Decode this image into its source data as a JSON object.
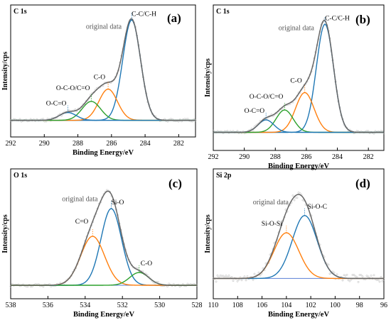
{
  "chart_data": [
    {
      "type": "line",
      "panel": "(a)",
      "title": "C 1s",
      "xlabel": "Binding Energy/eV",
      "ylabel": "Intensity/cps",
      "xlim": [
        292,
        281
      ],
      "x_reversed": true,
      "xticks": [
        292,
        290,
        288,
        286,
        284,
        282
      ],
      "ylim": [
        0,
        1
      ],
      "original_label": "original data",
      "series": [
        {
          "name": "C-C/C-H",
          "type": "gaussian",
          "center": 284.8,
          "height": 0.9,
          "fwhm": 1.25,
          "color": "#1f77b4"
        },
        {
          "name": "C-O",
          "type": "gaussian",
          "center": 286.2,
          "height": 0.28,
          "fwhm": 1.3,
          "color": "#ff7f0e"
        },
        {
          "name": "O-C-O/C=O",
          "type": "gaussian",
          "center": 287.2,
          "height": 0.17,
          "fwhm": 1.3,
          "color": "#2ca02c"
        },
        {
          "name": "O-C=O",
          "type": "gaussian",
          "center": 288.6,
          "height": 0.07,
          "fwhm": 1.2,
          "color": "#1f77b4"
        }
      ],
      "baseline": 0.06
    },
    {
      "type": "line",
      "panel": "(b)",
      "title": "C 1s",
      "xlabel": "Binding Energy/eV",
      "ylabel": "Intensity/cps",
      "xlim": [
        292,
        281
      ],
      "x_reversed": true,
      "xticks": [
        292,
        290,
        288,
        286,
        284,
        282
      ],
      "ylim": [
        0,
        1
      ],
      "original_label": "original data",
      "series": [
        {
          "name": "C-C/C-H",
          "type": "gaussian",
          "center": 284.8,
          "height": 0.87,
          "fwhm": 1.3,
          "color": "#1f77b4"
        },
        {
          "name": "C-O",
          "type": "gaussian",
          "center": 286.1,
          "height": 0.32,
          "fwhm": 1.4,
          "color": "#ff7f0e"
        },
        {
          "name": "O-C-O/C=O",
          "type": "gaussian",
          "center": 287.4,
          "height": 0.18,
          "fwhm": 1.3,
          "color": "#2ca02c"
        },
        {
          "name": "O-C=O",
          "type": "gaussian",
          "center": 288.6,
          "height": 0.1,
          "fwhm": 1.2,
          "color": "#1f77b4"
        }
      ],
      "baseline": 0.06
    },
    {
      "type": "line",
      "panel": "(c)",
      "title": "O 1s",
      "xlabel": "Binding Energy/eV",
      "ylabel": "Intensity/cps",
      "xlim": [
        538,
        528
      ],
      "x_reversed": true,
      "xticks": [
        538,
        536,
        534,
        532,
        530,
        528
      ],
      "ylim": [
        0,
        1
      ],
      "original_label": "original data",
      "series": [
        {
          "name": "Si-O",
          "type": "gaussian",
          "center": 532.6,
          "height": 0.72,
          "fwhm": 1.3,
          "color": "#1f77b4"
        },
        {
          "name": "C=O",
          "type": "gaussian",
          "center": 533.6,
          "height": 0.46,
          "fwhm": 1.5,
          "color": "#ff7f0e"
        },
        {
          "name": "C-O",
          "type": "gaussian",
          "center": 531.1,
          "height": 0.12,
          "fwhm": 1.2,
          "color": "#2ca02c"
        }
      ],
      "baseline": 0.04
    },
    {
      "type": "line",
      "panel": "(d)",
      "title": "Si 2p",
      "xlabel": "Binding Energy/eV",
      "ylabel": "Intensity/cps",
      "xlim": [
        110,
        96
      ],
      "x_reversed": true,
      "xticks": [
        110,
        108,
        106,
        104,
        102,
        100,
        98,
        96
      ],
      "ylim": [
        0,
        1
      ],
      "original_label": "original data",
      "series": [
        {
          "name": "Si-O-C",
          "type": "gaussian",
          "center": 102.5,
          "height": 0.62,
          "fwhm": 2.4,
          "color": "#1f77b4"
        },
        {
          "name": "Si-O-Si",
          "type": "gaussian",
          "center": 104.0,
          "height": 0.45,
          "fwhm": 2.4,
          "color": "#ff7f0e"
        }
      ],
      "baseline": 0.06
    }
  ]
}
